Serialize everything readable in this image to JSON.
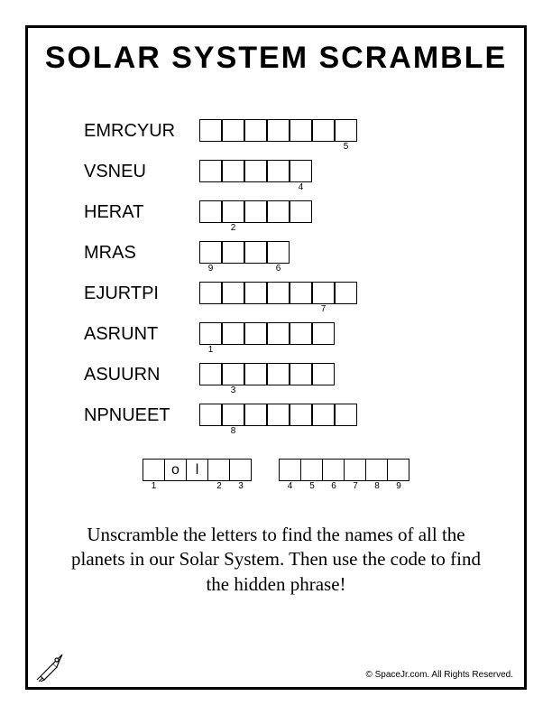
{
  "title": "SOLAR SYSTEM SCRAMBLE",
  "rows": [
    {
      "clue": "EMRCYUR",
      "len": 7,
      "nums": {
        "6": "5"
      }
    },
    {
      "clue": "VSNEU",
      "len": 5,
      "nums": {
        "4": "4"
      }
    },
    {
      "clue": "HERAT",
      "len": 5,
      "nums": {
        "1": "2"
      }
    },
    {
      "clue": "MRAS",
      "len": 4,
      "nums": {
        "0": "9",
        "3": "6"
      }
    },
    {
      "clue": "EJURTPI",
      "len": 7,
      "nums": {
        "5": "7"
      }
    },
    {
      "clue": "ASRUNT",
      "len": 6,
      "nums": {
        "0": "1"
      }
    },
    {
      "clue": "ASUURN",
      "len": 6,
      "nums": {
        "1": "3"
      }
    },
    {
      "clue": "NPNUEET",
      "len": 7,
      "nums": {
        "1": "8"
      }
    }
  ],
  "answer": {
    "group1": [
      {
        "num": "1",
        "fill": ""
      },
      {
        "num": "",
        "fill": "o"
      },
      {
        "num": "",
        "fill": "l"
      },
      {
        "num": "2",
        "fill": ""
      },
      {
        "num": "3",
        "fill": ""
      }
    ],
    "group2": [
      {
        "num": "4",
        "fill": ""
      },
      {
        "num": "5",
        "fill": ""
      },
      {
        "num": "6",
        "fill": ""
      },
      {
        "num": "7",
        "fill": ""
      },
      {
        "num": "8",
        "fill": ""
      },
      {
        "num": "9",
        "fill": ""
      }
    ]
  },
  "instructions": "Unscramble the letters to find the names of all the planets in our Solar System. Then use the code to find the hidden phrase!",
  "footer": "© SpaceJr.com. All Rights Reserved.",
  "colors": {
    "border": "#000000",
    "background": "#ffffff",
    "text": "#000000"
  }
}
